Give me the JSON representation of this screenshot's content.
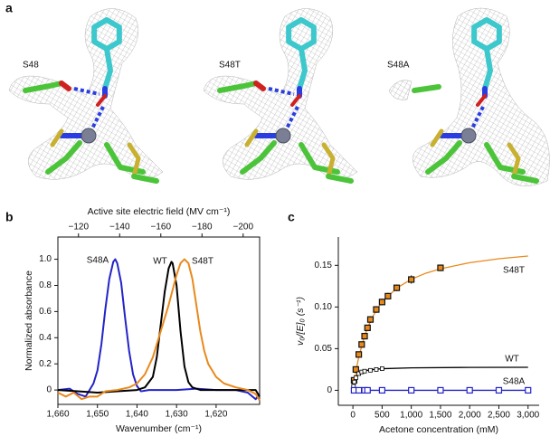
{
  "panel_a": {
    "panel": "a",
    "labels": [
      "S48",
      "S48T",
      "S48A"
    ],
    "label_colors": [
      "#111111",
      "#e8891c",
      "#2323c8"
    ]
  },
  "chart_data": [
    {
      "type": "line",
      "panel": "b",
      "x_label": "Wavenumber (cm⁻¹)",
      "x2_label": "Active site electric field (MV cm⁻¹)",
      "y_label": "Normalized absorbance",
      "xlim": [
        1660,
        1609
      ],
      "xticks": [
        {
          "value": 1660,
          "label": "1,660"
        },
        {
          "value": 1650,
          "label": "1,650"
        },
        {
          "value": 1640,
          "label": "1,640"
        },
        {
          "value": 1630,
          "label": "1,630"
        },
        {
          "value": 1620,
          "label": "1,620"
        }
      ],
      "x2lim": [
        -110,
        -208
      ],
      "x2ticks": [
        {
          "value": -120,
          "label": "−120"
        },
        {
          "value": -140,
          "label": "−140"
        },
        {
          "value": -160,
          "label": "−160"
        },
        {
          "value": -180,
          "label": "−180"
        },
        {
          "value": -200,
          "label": "−200"
        }
      ],
      "ylim": [
        -0.11,
        1.17
      ],
      "yticks": [
        0,
        0.2,
        0.4,
        0.6,
        0.8,
        {
          "value": 1,
          "label": "1.0"
        }
      ],
      "series": [
        {
          "name": "S48A",
          "color": "#2323c8",
          "x": [
            1660,
            1657,
            1655,
            1653,
            1652,
            1651,
            1650,
            1649,
            1648,
            1647,
            1646,
            1645.5,
            1645,
            1644,
            1643,
            1642,
            1641,
            1640,
            1639,
            1637,
            1630,
            1625,
            1620,
            1615,
            1612,
            1610,
            1609
          ],
          "values": [
            0.0,
            0.01,
            -0.03,
            -0.05,
            0.0,
            0.05,
            0.15,
            0.35,
            0.62,
            0.85,
            0.98,
            1.0,
            0.97,
            0.82,
            0.55,
            0.3,
            0.12,
            0.03,
            -0.01,
            0.0,
            0.0,
            0.01,
            0.0,
            0.0,
            -0.02,
            -0.07,
            -0.03
          ]
        },
        {
          "name": "WT",
          "color": "#000000",
          "x": [
            1660,
            1655,
            1650,
            1645,
            1640,
            1638,
            1636,
            1635,
            1634,
            1633,
            1632,
            1631.3,
            1631,
            1630,
            1629,
            1628,
            1627,
            1626,
            1624,
            1620,
            1615,
            1610,
            1609
          ],
          "values": [
            0.0,
            -0.01,
            -0.02,
            -0.01,
            0.0,
            0.02,
            0.1,
            0.25,
            0.5,
            0.75,
            0.93,
            0.98,
            0.97,
            0.8,
            0.45,
            0.18,
            0.06,
            0.02,
            0.0,
            0.0,
            0.0,
            0.0,
            -0.05
          ]
        },
        {
          "name": "S48T",
          "color": "#e8891c",
          "x": [
            1660,
            1658,
            1656,
            1654,
            1652,
            1650,
            1648,
            1645,
            1642,
            1640,
            1638,
            1636,
            1634,
            1632,
            1630,
            1629,
            1628,
            1627,
            1626,
            1625,
            1624,
            1623,
            1622,
            1620,
            1618,
            1615,
            1612,
            1610,
            1609
          ],
          "values": [
            -0.02,
            -0.05,
            -0.02,
            -0.07,
            -0.05,
            -0.05,
            -0.01,
            0.0,
            0.02,
            0.05,
            0.12,
            0.25,
            0.45,
            0.65,
            0.88,
            0.97,
            1.0,
            0.97,
            0.85,
            0.65,
            0.45,
            0.3,
            0.2,
            0.1,
            0.05,
            0.02,
            0.0,
            -0.03,
            -0.08
          ]
        }
      ]
    },
    {
      "type": "scatter",
      "panel": "c",
      "x_label": "Acetone concentration (mM)",
      "y_label": "v₀/[E]₀ (s⁻¹)",
      "xlim": [
        -250,
        3190
      ],
      "xticks": [
        0,
        500,
        {
          "value": 1000,
          "label": "1,000"
        },
        {
          "value": 1500,
          "label": "1,500"
        },
        {
          "value": 2000,
          "label": "2,000"
        },
        {
          "value": 2500,
          "label": "2,500"
        },
        {
          "value": 3000,
          "label": "3,000"
        }
      ],
      "ylim": [
        -0.018,
        0.184
      ],
      "yticks": [
        0,
        0.05,
        {
          "value": 0.1,
          "label": "0.10"
        },
        0.15
      ],
      "series": [
        {
          "name": "S48T",
          "color": "#e8891c",
          "x": [
            20,
            50,
            100,
            150,
            200,
            250,
            300,
            400,
            500,
            600,
            750,
            1000,
            1500
          ],
          "values": [
            0.012,
            0.025,
            0.043,
            0.055,
            0.065,
            0.075,
            0.085,
            0.097,
            0.106,
            0.113,
            0.123,
            0.133,
            0.147
          ],
          "errors": [
            0.002,
            0.003,
            0.003,
            0.003,
            0.003,
            0.003,
            0.004,
            0.004,
            0.004,
            0.004,
            0.004,
            0.005,
            0.004
          ],
          "fit": {
            "x": [
              0,
              50,
              100,
              200,
              300,
              400,
              500,
              750,
              1000,
              1250,
              1500,
              2000,
              2500,
              3000
            ],
            "values": [
              0,
              0.0225,
              0.04,
              0.0655,
              0.0831,
              0.096,
              0.1059,
              0.1227,
              0.1333,
              0.1406,
              0.1459,
              0.1532,
              0.1579,
              0.1612
            ]
          }
        },
        {
          "name": "WT",
          "color": "#000000",
          "x": [
            10,
            25,
            50,
            100,
            150,
            200,
            300,
            400,
            500
          ],
          "values": [
            0.005,
            0.01,
            0.015,
            0.02,
            0.022,
            0.023,
            0.024,
            0.025,
            0.026
          ],
          "errors": [
            0.001,
            0.001,
            0.002,
            0.002,
            0.002,
            0.002,
            0.002,
            0.002,
            0.002
          ],
          "fit": {
            "x": [
              0,
              25,
              50,
              100,
              200,
              300,
              500,
              1000,
              2000,
              3000
            ],
            "values": [
              0,
              0.0108,
              0.0156,
              0.02,
              0.0233,
              0.0247,
              0.0259,
              0.0269,
              0.0275,
              0.0276
            ]
          }
        },
        {
          "name": "S48A",
          "color": "#2323c8",
          "x": [
            20,
            100,
            200,
            250,
            500,
            1000,
            1500,
            2000,
            2500,
            3000
          ],
          "values": [
            0,
            0,
            0,
            0,
            0,
            0,
            0,
            0,
            0,
            0
          ],
          "errors": [
            0.001,
            0.001,
            0.001,
            0.001,
            0.001,
            0.001,
            0.001,
            0.001,
            0.001,
            0.001
          ],
          "fit": {
            "x": [
              0,
              3000
            ],
            "values": [
              0,
              0
            ]
          }
        }
      ]
    }
  ]
}
